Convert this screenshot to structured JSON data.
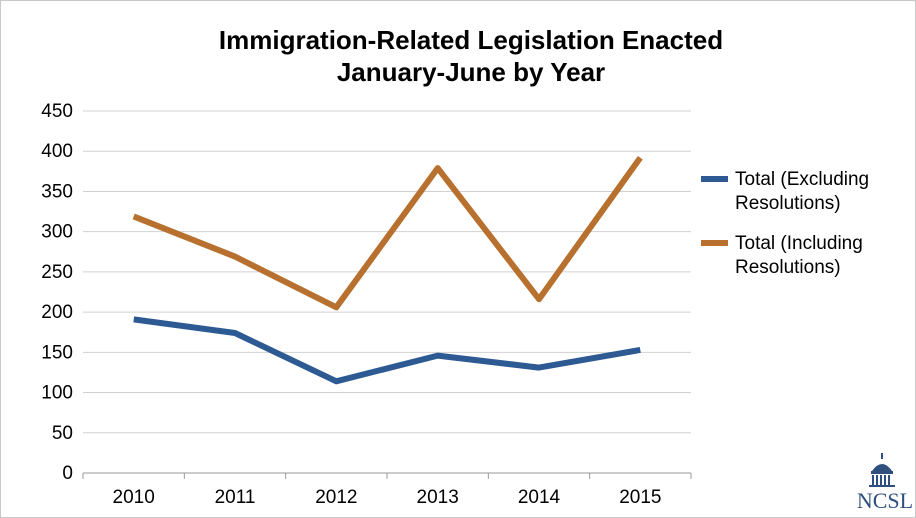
{
  "chart_data": {
    "type": "line",
    "title_lines": [
      "Immigration-Related Legislation Enacted",
      "January-June by Year"
    ],
    "categories": [
      "2010",
      "2011",
      "2012",
      "2013",
      "2014",
      "2015"
    ],
    "ylim": [
      0,
      450
    ],
    "yticks": [
      0,
      50,
      100,
      150,
      200,
      250,
      300,
      350,
      400,
      450
    ],
    "grid": true,
    "legend_position": "right",
    "series": [
      {
        "name_lines": [
          "Total (Excluding",
          "Resolutions)"
        ],
        "color": "#2e5a94",
        "values": [
          191,
          174,
          114,
          146,
          131,
          153
        ]
      },
      {
        "name_lines": [
          "Total (Including",
          "Resolutions)"
        ],
        "color": "#b8702e",
        "values": [
          319,
          269,
          206,
          379,
          216,
          392
        ]
      }
    ]
  },
  "logo": {
    "text": "NCSL",
    "icon": "capitol-dome-icon"
  }
}
